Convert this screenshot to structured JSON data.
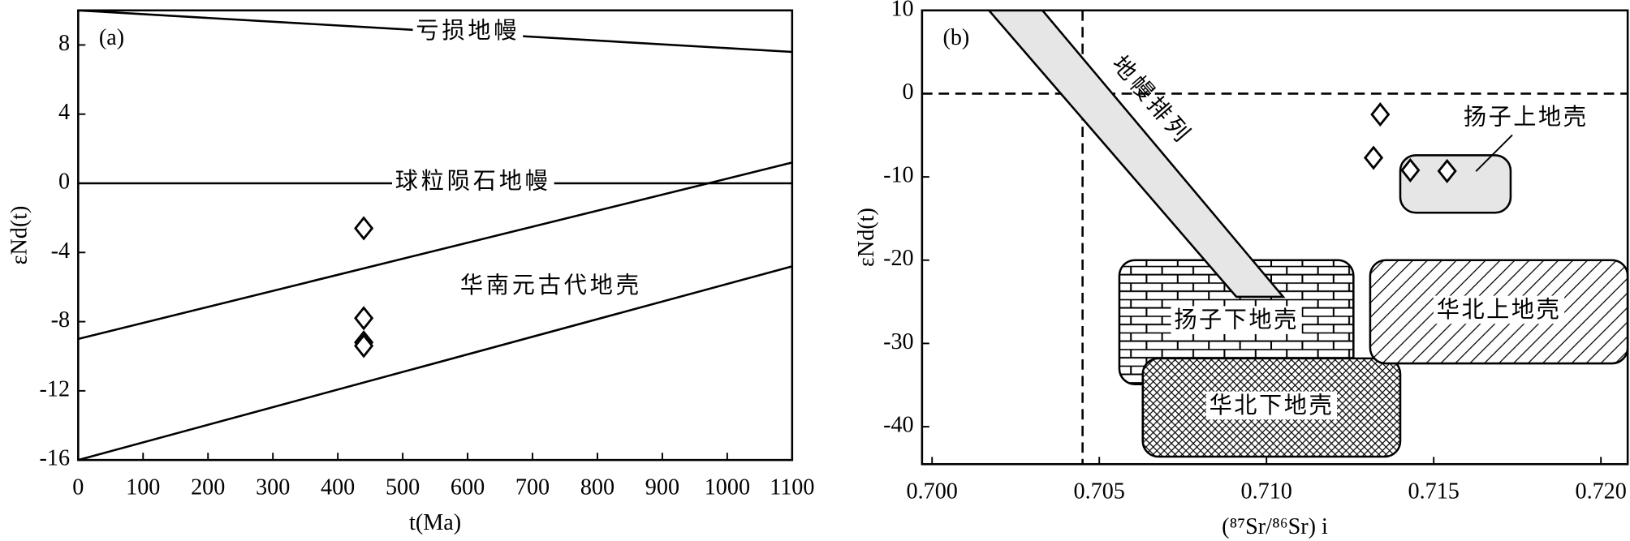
{
  "chart_data": [
    {
      "type": "line",
      "label": "(a)",
      "xlabel": "t(Ma)",
      "ylabel": "εNd(t)",
      "xlim": [
        0,
        1100
      ],
      "ylim": [
        -16,
        10
      ],
      "xticks": [
        0,
        100,
        200,
        300,
        400,
        500,
        600,
        700,
        800,
        900,
        1000,
        1100
      ],
      "yticks": [
        -16,
        -12,
        -8,
        -4,
        0,
        4,
        8
      ],
      "series": [
        {
          "label": "亏损地幔",
          "color": "#000000",
          "x": [
            0,
            1100
          ],
          "values": [
            10,
            7.6
          ]
        },
        {
          "label": "球粒陨石地幔",
          "color": "#000000",
          "x": [
            0,
            1100
          ],
          "values": [
            0,
            0
          ]
        },
        {
          "color": "#000000",
          "x": [
            0,
            1100
          ],
          "values": [
            -9,
            1.2
          ]
        },
        {
          "color": "#000000",
          "x": [
            0,
            1100
          ],
          "values": [
            -16,
            -4.8
          ]
        }
      ],
      "annotation": "华南元古代地壳",
      "points": {
        "x": [
          440,
          440,
          440,
          440
        ],
        "values": [
          -2.6,
          -7.8,
          -9.2,
          -9.4
        ]
      }
    },
    {
      "type": "scatter",
      "label": "(b)",
      "xlabel": "(⁸⁷Sr/⁸⁶Sr) i",
      "ylabel": "εNd(t)",
      "xlim": [
        0.6997,
        0.7208
      ],
      "ylim": [
        -44.5,
        10
      ],
      "xticks": [
        {
          "value": 0.7,
          "label": "0.700"
        },
        {
          "value": 0.705,
          "label": "0.705"
        },
        {
          "value": 0.71,
          "label": "0.710"
        },
        {
          "value": 0.715,
          "label": "0.715"
        },
        {
          "value": 0.72,
          "label": "0.720"
        }
      ],
      "yticks": [
        10,
        0,
        -10,
        -20,
        -30,
        -40
      ],
      "reference_lines": {
        "x": 0.7045,
        "y": 0
      },
      "regions": [
        {
          "label": "地幔排列",
          "shape": "band",
          "x": [
            0.7017,
            0.7033,
            0.7105,
            0.7091
          ],
          "y": [
            10,
            10,
            -24.4,
            -24.4
          ],
          "fill": "#e6e6e6"
        },
        {
          "label": "扬子下地壳",
          "shape": "box",
          "x": [
            0.7056,
            0.7126
          ],
          "y": [
            -20,
            -34.9
          ],
          "fill": "brick"
        },
        {
          "label": "华北上地壳",
          "shape": "box",
          "x": [
            0.7131,
            0.7208
          ],
          "y": [
            -20,
            -32.4
          ],
          "fill": "hatch"
        },
        {
          "label": "华北下地壳",
          "shape": "box",
          "x": [
            0.7063,
            0.714
          ],
          "y": [
            -31.8,
            -43.6
          ],
          "fill": "cross"
        },
        {
          "label": "扬子上地壳",
          "shape": "box",
          "x": [
            0.714,
            0.7173
          ],
          "y": [
            -7.4,
            -14.3
          ],
          "fill": "#e6e6e6"
        }
      ],
      "x": [
        0.7134,
        0.7132,
        0.7143,
        0.7154
      ],
      "values": [
        -2.5,
        -7.7,
        -9.2,
        -9.3
      ]
    }
  ]
}
